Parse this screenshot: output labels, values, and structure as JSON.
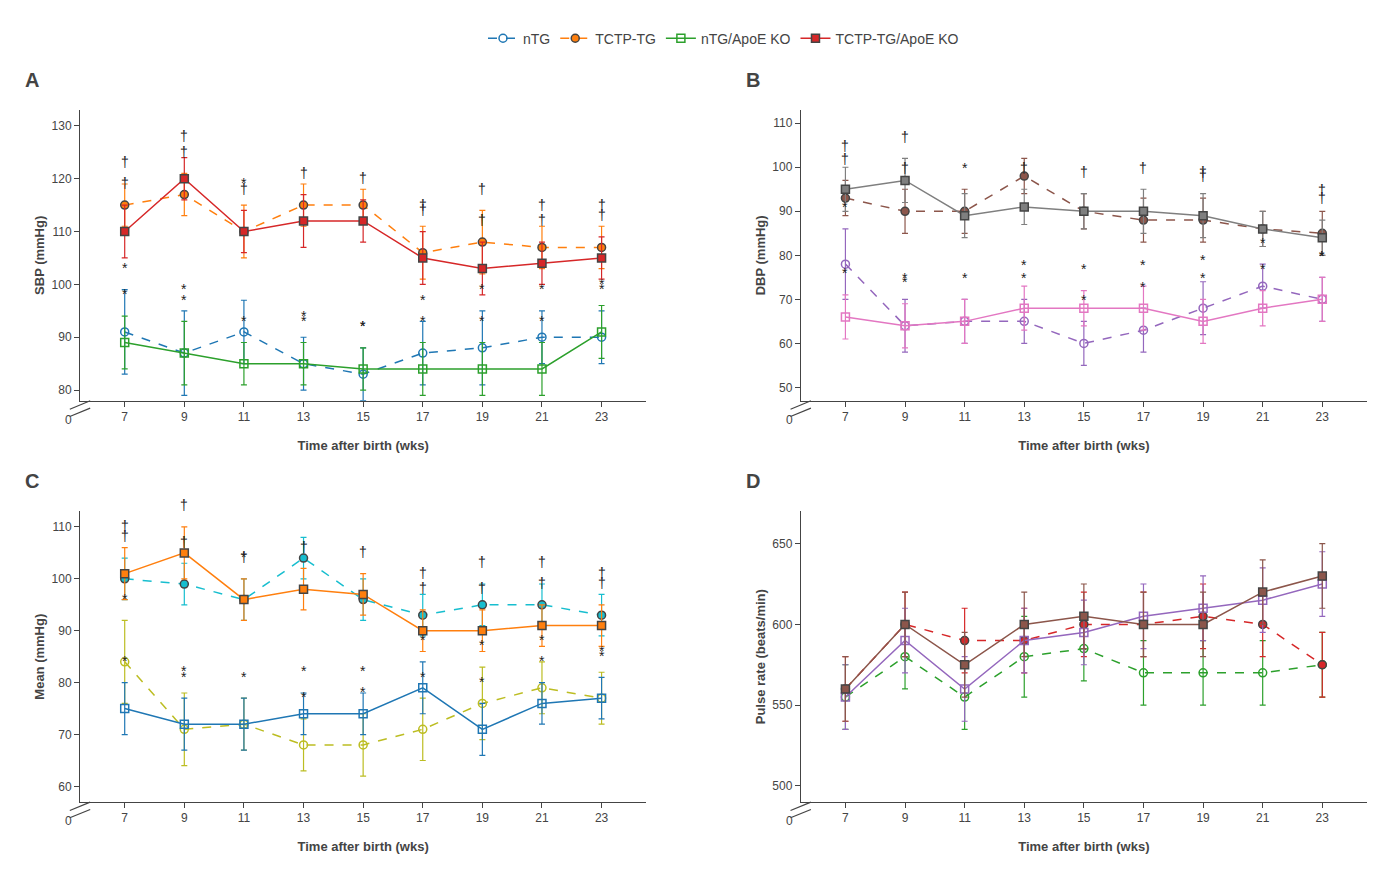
{
  "chart_data": [
    {
      "type": "line",
      "title": "A",
      "xlabel": "Time after birth (wks)",
      "ylabel": "SBP (mmHg)",
      "x": [
        7,
        9,
        11,
        13,
        15,
        17,
        19,
        21,
        23
      ],
      "xlim": [
        5.5,
        24.5
      ],
      "xticks": [
        7,
        9,
        11,
        13,
        15,
        17,
        19,
        21,
        23
      ],
      "ylim": [
        78,
        133
      ],
      "yticks": [
        80,
        90,
        100,
        110,
        120,
        130
      ],
      "grid": false,
      "legend": "top",
      "series": [
        {
          "name": "nTG",
          "marker": "circle-open",
          "line_style": "dash",
          "values": [
            91,
            87,
            91,
            85,
            83,
            87,
            88,
            90,
            90
          ],
          "errors": [
            8,
            8,
            6,
            5,
            5,
            6,
            7,
            5,
            5
          ]
        },
        {
          "name": "TCTP-TG",
          "marker": "circle",
          "line_style": "dash",
          "values": [
            115,
            117,
            110,
            115,
            115,
            106,
            108,
            107,
            107
          ],
          "errors": [
            4,
            4,
            5,
            4,
            3,
            5,
            6,
            4,
            4
          ]
        },
        {
          "name": "nTG/ApoE KO",
          "marker": "square-open",
          "line_style": "solid",
          "values": [
            89,
            87,
            85,
            85,
            84,
            84,
            84,
            84,
            91
          ],
          "errors": [
            5,
            6,
            4,
            4,
            4,
            5,
            5,
            5,
            5
          ]
        },
        {
          "name": "TCTP-TG/ApoE KO",
          "marker": "square",
          "line_style": "solid",
          "values": [
            110,
            120,
            110,
            112,
            112,
            105,
            103,
            104,
            105
          ],
          "errors": [
            5,
            4,
            4,
            5,
            4,
            5,
            5,
            4,
            4
          ]
        }
      ],
      "annotations": [
        {
          "text": "†",
          "series": "TCTP-TG",
          "x": [
            7,
            9,
            17,
            19,
            21,
            23
          ]
        },
        {
          "text": "†",
          "series": "TCTP-TG/ApoE KO",
          "x": [
            7,
            9,
            11,
            13,
            15,
            17,
            19,
            21,
            23
          ]
        },
        {
          "text": "*",
          "series": "nTG",
          "x": [
            7,
            9,
            13,
            15,
            17,
            19,
            21,
            23
          ]
        },
        {
          "text": "*",
          "series": "TCTP-TG",
          "x": [
            11
          ]
        },
        {
          "text": "*",
          "series": "nTG/ApoE KO",
          "x": [
            7,
            9,
            11,
            13,
            15,
            17,
            19,
            21,
            23
          ]
        },
        {
          "text": "0"
        }
      ]
    },
    {
      "type": "line",
      "title": "B",
      "xlabel": "Time after birth (wks)",
      "ylabel": "DBP (mmHg)",
      "x": [
        7,
        9,
        11,
        13,
        15,
        17,
        19,
        21,
        23
      ],
      "xlim": [
        5.5,
        24.5
      ],
      "xticks": [
        7,
        9,
        11,
        13,
        15,
        17,
        19,
        21,
        23
      ],
      "ylim": [
        47,
        113
      ],
      "yticks": [
        50,
        60,
        70,
        80,
        90,
        100,
        110
      ],
      "grid": false,
      "series": [
        {
          "name": "nTG",
          "marker": "circle-open",
          "line_style": "dash",
          "values": [
            78,
            64,
            65,
            65,
            60,
            63,
            68,
            73,
            70
          ],
          "errors": [
            8,
            6,
            5,
            5,
            5,
            5,
            6,
            5,
            5
          ]
        },
        {
          "name": "TCTP-TG",
          "marker": "circle",
          "line_style": "dash",
          "values": [
            93,
            90,
            90,
            98,
            90,
            88,
            88,
            86,
            85
          ],
          "errors": [
            4,
            5,
            5,
            4,
            4,
            5,
            5,
            4,
            5
          ]
        },
        {
          "name": "nTG/ApoE KO",
          "marker": "square-open",
          "line_style": "solid",
          "values": [
            66,
            64,
            65,
            68,
            68,
            68,
            65,
            68,
            70
          ],
          "errors": [
            5,
            5,
            5,
            5,
            4,
            5,
            5,
            4,
            5
          ]
        },
        {
          "name": "TCTP-TG/ApoE KO",
          "marker": "square",
          "line_style": "solid",
          "values": [
            95,
            97,
            89,
            91,
            90,
            90,
            89,
            86,
            84
          ],
          "errors": [
            5,
            5,
            5,
            4,
            4,
            5,
            5,
            4,
            4
          ]
        }
      ],
      "annotations": [
        {
          "text": "†",
          "series": "TCTP-TG",
          "x": [
            7,
            9,
            19,
            23
          ]
        },
        {
          "text": "†",
          "series": "TCTP-TG/ApoE KO",
          "x": [
            7,
            9,
            13,
            15,
            17,
            19,
            23
          ]
        },
        {
          "text": "*",
          "series": "nTG",
          "x": [
            7,
            9,
            13,
            15,
            17,
            19,
            21,
            23
          ]
        },
        {
          "text": "*",
          "series": "TCTP-TG",
          "x": [
            11
          ]
        },
        {
          "text": "*",
          "series": "nTG/ApoE KO",
          "x": [
            7,
            9,
            11,
            13,
            15,
            17,
            19,
            21,
            23
          ]
        },
        {
          "text": "0"
        }
      ]
    },
    {
      "type": "line",
      "title": "C",
      "xlabel": "Time after birth (wks)",
      "ylabel": "Mean (mmHg)",
      "x": [
        7,
        9,
        11,
        13,
        15,
        17,
        19,
        21,
        23
      ],
      "xlim": [
        5.5,
        24.5
      ],
      "xticks": [
        7,
        9,
        11,
        13,
        15,
        17,
        19,
        21,
        23
      ],
      "ylim": [
        57,
        113
      ],
      "yticks": [
        60,
        70,
        80,
        90,
        100,
        110
      ],
      "grid": false,
      "series": [
        {
          "name": "nTG",
          "marker": "circle-open",
          "line_style": "dash",
          "values": [
            84,
            71,
            72,
            68,
            68,
            71,
            76,
            79,
            77
          ],
          "errors": [
            8,
            7,
            5,
            5,
            6,
            6,
            7,
            5,
            5
          ]
        },
        {
          "name": "TCTP-TG",
          "marker": "circle",
          "line_style": "dash",
          "values": [
            100,
            99,
            96,
            104,
            96,
            93,
            95,
            95,
            93
          ],
          "errors": [
            4,
            4,
            4,
            4,
            4,
            4,
            4,
            4,
            4
          ]
        },
        {
          "name": "nTG/ApoE KO",
          "marker": "square-open",
          "line_style": "solid",
          "values": [
            75,
            72,
            72,
            74,
            74,
            79,
            71,
            76,
            77
          ],
          "errors": [
            5,
            5,
            5,
            4,
            4,
            5,
            5,
            4,
            4
          ]
        },
        {
          "name": "TCTP-TG/ApoE KO",
          "marker": "square",
          "line_style": "solid",
          "values": [
            101,
            105,
            96,
            98,
            97,
            90,
            90,
            91,
            91
          ],
          "errors": [
            5,
            5,
            4,
            4,
            4,
            4,
            4,
            4,
            4
          ]
        }
      ],
      "annotations": [
        {
          "text": "†",
          "series": "TCTP-TG",
          "x": [
            7,
            9,
            17,
            19,
            21,
            23
          ]
        },
        {
          "text": "†",
          "series": "TCTP-TG/ApoE KO",
          "x": [
            7,
            9,
            11,
            13,
            15,
            17,
            19,
            21,
            23
          ]
        },
        {
          "text": "*",
          "series": "nTG",
          "x": [
            7,
            9,
            13,
            15,
            17,
            19,
            21,
            23
          ]
        },
        {
          "text": "*",
          "series": "TCTP-TG",
          "x": [
            11
          ]
        },
        {
          "text": "*",
          "series": "nTG/ApoE KO",
          "x": [
            7,
            9,
            11,
            13,
            15,
            17,
            19,
            21,
            23
          ]
        },
        {
          "text": "0"
        }
      ]
    },
    {
      "type": "line",
      "title": "D",
      "xlabel": "Time after birth (wks)",
      "ylabel": "Pulse rate (beats/min)",
      "x": [
        7,
        9,
        11,
        13,
        15,
        17,
        19,
        21,
        23
      ],
      "xlim": [
        5.5,
        24.5
      ],
      "xticks": [
        7,
        9,
        11,
        13,
        15,
        17,
        19,
        21,
        23
      ],
      "ylim": [
        490,
        670
      ],
      "yticks": [
        500,
        550,
        600,
        650
      ],
      "grid": false,
      "series": [
        {
          "name": "nTG",
          "marker": "circle-open",
          "line_style": "dash",
          "values": [
            555,
            580,
            555,
            580,
            585,
            570,
            570,
            570,
            575
          ],
          "errors": [
            20,
            20,
            20,
            25,
            20,
            20,
            20,
            20,
            20
          ]
        },
        {
          "name": "TCTP-TG",
          "marker": "circle",
          "line_style": "dash",
          "values": [
            560,
            600,
            590,
            590,
            600,
            600,
            605,
            600,
            575
          ],
          "errors": [
            20,
            20,
            20,
            20,
            20,
            20,
            20,
            20,
            20
          ]
        },
        {
          "name": "nTG/ApoE KO",
          "marker": "square-open",
          "line_style": "solid",
          "values": [
            555,
            590,
            560,
            590,
            595,
            605,
            610,
            615,
            625
          ],
          "errors": [
            20,
            20,
            20,
            20,
            20,
            20,
            20,
            20,
            20
          ]
        },
        {
          "name": "TCTP-TG/ApoE KO",
          "marker": "square",
          "line_style": "solid",
          "values": [
            560,
            600,
            575,
            600,
            605,
            600,
            600,
            620,
            630
          ],
          "errors": [
            20,
            20,
            20,
            20,
            20,
            20,
            20,
            20,
            20
          ]
        }
      ],
      "annotations": [
        {
          "text": "0"
        }
      ]
    }
  ]
}
